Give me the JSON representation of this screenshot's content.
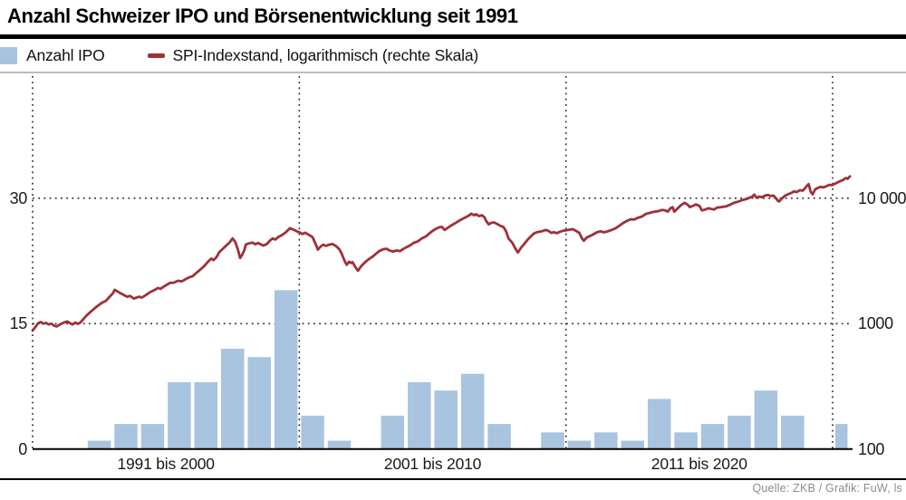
{
  "title": "Anzahl Schweizer IPO und Börsenentwicklung seit 1991",
  "legend": {
    "ipo_label": "Anzahl IPO",
    "spi_label": "SPI-Indexstand, logarithmisch (rechte Skala)"
  },
  "source": "Quelle: ZKB / Grafik: FuW, ls",
  "colors": {
    "bar": "#a9c4de",
    "line": "#9e3138",
    "grid_dots": "#2a2a2a",
    "axis": "#000000",
    "gray_rule": "#bcbcbc",
    "source_text": "#8c8c8c"
  },
  "chart_data": {
    "type": "combo",
    "title": "Anzahl Schweizer IPO und Börsenentwicklung seit 1991",
    "x_axis": {
      "range_years": [
        1991,
        2021.8
      ],
      "decade_separators": [
        1991,
        2001,
        2011,
        2021
      ],
      "group_labels": [
        {
          "label": "1991 bis 2000",
          "center_year": 1996
        },
        {
          "label": "2001 bis 2010",
          "center_year": 2006
        },
        {
          "label": "2011 bis 2020",
          "center_year": 2016
        }
      ]
    },
    "y_left": {
      "label": "Anzahl IPO",
      "ticks": [
        0,
        15,
        30
      ],
      "range": [
        0,
        45
      ],
      "grid_ticks": [
        15,
        30
      ]
    },
    "y_right": {
      "label": "SPI-Indexstand",
      "scale": "logarithmic",
      "ticks": [
        100,
        1000,
        10000
      ],
      "tick_labels": [
        "100",
        "1000",
        "10 000"
      ]
    },
    "series": [
      {
        "name": "Anzahl IPO",
        "type": "bar",
        "axis": "left",
        "start_year": 1991,
        "values": [
          0,
          0,
          1,
          3,
          3,
          8,
          8,
          12,
          11,
          19,
          4,
          1,
          0,
          4,
          8,
          7,
          9,
          3,
          0,
          2,
          1,
          2,
          1,
          6,
          2,
          3,
          4,
          7,
          4,
          0,
          3
        ],
        "partial_last_year": 2021
      },
      {
        "name": "SPI-Indexstand, logarithmisch (rechte Skala)",
        "type": "line",
        "axis": "right",
        "points": [
          [
            1991.0,
            880
          ],
          [
            1991.1,
            935
          ],
          [
            1991.2,
            1005
          ],
          [
            1991.3,
            1030
          ],
          [
            1991.4,
            1000
          ],
          [
            1991.5,
            1015
          ],
          [
            1991.6,
            985
          ],
          [
            1991.7,
            1000
          ],
          [
            1991.8,
            965
          ],
          [
            1991.9,
            950
          ],
          [
            1992.0,
            977
          ],
          [
            1992.1,
            1005
          ],
          [
            1992.2,
            1025
          ],
          [
            1992.3,
            1040
          ],
          [
            1992.4,
            1010
          ],
          [
            1992.5,
            985
          ],
          [
            1992.6,
            1020
          ],
          [
            1992.7,
            995
          ],
          [
            1992.8,
            1025
          ],
          [
            1992.9,
            1085
          ],
          [
            1993.0,
            1148
          ],
          [
            1993.15,
            1230
          ],
          [
            1993.3,
            1310
          ],
          [
            1993.45,
            1390
          ],
          [
            1993.6,
            1465
          ],
          [
            1993.75,
            1520
          ],
          [
            1993.9,
            1650
          ],
          [
            1994.0,
            1735
          ],
          [
            1994.08,
            1860
          ],
          [
            1994.2,
            1795
          ],
          [
            1994.3,
            1745
          ],
          [
            1994.45,
            1680
          ],
          [
            1994.55,
            1635
          ],
          [
            1994.65,
            1665
          ],
          [
            1994.8,
            1585
          ],
          [
            1994.9,
            1615
          ],
          [
            1995.0,
            1639
          ],
          [
            1995.1,
            1615
          ],
          [
            1995.25,
            1690
          ],
          [
            1995.4,
            1780
          ],
          [
            1995.55,
            1845
          ],
          [
            1995.7,
            1925
          ],
          [
            1995.8,
            1895
          ],
          [
            1995.9,
            1965
          ],
          [
            1996.0,
            2023
          ],
          [
            1996.15,
            2110
          ],
          [
            1996.3,
            2125
          ],
          [
            1996.45,
            2195
          ],
          [
            1996.6,
            2175
          ],
          [
            1996.75,
            2270
          ],
          [
            1996.9,
            2355
          ],
          [
            1997.0,
            2390
          ],
          [
            1997.15,
            2550
          ],
          [
            1997.3,
            2705
          ],
          [
            1997.45,
            2900
          ],
          [
            1997.6,
            3155
          ],
          [
            1997.7,
            3305
          ],
          [
            1997.78,
            3205
          ],
          [
            1997.88,
            3360
          ],
          [
            1997.95,
            3550
          ],
          [
            1998.0,
            3711
          ],
          [
            1998.12,
            3930
          ],
          [
            1998.25,
            4170
          ],
          [
            1998.38,
            4420
          ],
          [
            1998.5,
            4780
          ],
          [
            1998.6,
            4470
          ],
          [
            1998.7,
            3890
          ],
          [
            1998.78,
            3340
          ],
          [
            1998.86,
            3530
          ],
          [
            1998.93,
            3810
          ],
          [
            1999.0,
            4280
          ],
          [
            1999.12,
            4360
          ],
          [
            1999.25,
            4430
          ],
          [
            1999.35,
            4290
          ],
          [
            1999.45,
            4390
          ],
          [
            1999.55,
            4290
          ],
          [
            1999.65,
            4190
          ],
          [
            1999.78,
            4300
          ],
          [
            1999.9,
            4590
          ],
          [
            2000.0,
            4780
          ],
          [
            2000.1,
            4680
          ],
          [
            2000.22,
            4920
          ],
          [
            2000.35,
            5080
          ],
          [
            2000.5,
            5350
          ],
          [
            2000.65,
            5770
          ],
          [
            2000.78,
            5620
          ],
          [
            2000.9,
            5450
          ],
          [
            2001.0,
            5350
          ],
          [
            2001.12,
            5180
          ],
          [
            2001.22,
            5310
          ],
          [
            2001.35,
            5120
          ],
          [
            2001.5,
            4890
          ],
          [
            2001.6,
            4380
          ],
          [
            2001.7,
            3890
          ],
          [
            2001.8,
            4120
          ],
          [
            2001.9,
            4260
          ],
          [
            2002.0,
            4167
          ],
          [
            2002.12,
            4260
          ],
          [
            2002.25,
            4310
          ],
          [
            2002.38,
            4150
          ],
          [
            2002.5,
            3920
          ],
          [
            2002.6,
            3580
          ],
          [
            2002.7,
            3160
          ],
          [
            2002.78,
            2940
          ],
          [
            2002.87,
            3120
          ],
          [
            2002.95,
            3040
          ],
          [
            2003.0,
            3085
          ],
          [
            2003.1,
            2830
          ],
          [
            2003.2,
            2640
          ],
          [
            2003.32,
            2870
          ],
          [
            2003.45,
            3060
          ],
          [
            2003.6,
            3260
          ],
          [
            2003.75,
            3420
          ],
          [
            2003.9,
            3640
          ],
          [
            2004.0,
            3788
          ],
          [
            2004.15,
            3920
          ],
          [
            2004.28,
            3950
          ],
          [
            2004.4,
            3810
          ],
          [
            2004.52,
            3760
          ],
          [
            2004.65,
            3830
          ],
          [
            2004.78,
            3790
          ],
          [
            2004.9,
            3940
          ],
          [
            2005.0,
            4048
          ],
          [
            2005.15,
            4200
          ],
          [
            2005.3,
            4410
          ],
          [
            2005.45,
            4530
          ],
          [
            2005.6,
            4790
          ],
          [
            2005.75,
            4960
          ],
          [
            2005.9,
            5290
          ],
          [
            2006.0,
            5489
          ],
          [
            2006.12,
            5690
          ],
          [
            2006.25,
            5860
          ],
          [
            2006.35,
            5905
          ],
          [
            2006.45,
            5590
          ],
          [
            2006.55,
            5770
          ],
          [
            2006.7,
            6060
          ],
          [
            2006.85,
            6320
          ],
          [
            2007.0,
            6626
          ],
          [
            2007.12,
            6840
          ],
          [
            2007.25,
            7070
          ],
          [
            2007.38,
            7320
          ],
          [
            2007.45,
            7530
          ],
          [
            2007.55,
            7310
          ],
          [
            2007.62,
            7450
          ],
          [
            2007.75,
            7190
          ],
          [
            2007.85,
            7310
          ],
          [
            2007.95,
            7020
          ],
          [
            2008.0,
            6626
          ],
          [
            2008.1,
            6180
          ],
          [
            2008.2,
            6360
          ],
          [
            2008.3,
            6420
          ],
          [
            2008.45,
            6190
          ],
          [
            2008.55,
            6010
          ],
          [
            2008.65,
            5910
          ],
          [
            2008.75,
            5480
          ],
          [
            2008.85,
            4760
          ],
          [
            2008.95,
            4520
          ],
          [
            2009.0,
            4371
          ],
          [
            2009.1,
            3980
          ],
          [
            2009.2,
            3690
          ],
          [
            2009.32,
            4040
          ],
          [
            2009.45,
            4350
          ],
          [
            2009.55,
            4640
          ],
          [
            2009.68,
            4950
          ],
          [
            2009.8,
            5230
          ],
          [
            2009.9,
            5340
          ],
          [
            2010.0,
            5393
          ],
          [
            2010.12,
            5470
          ],
          [
            2010.25,
            5590
          ],
          [
            2010.35,
            5480
          ],
          [
            2010.45,
            5290
          ],
          [
            2010.55,
            5360
          ],
          [
            2010.65,
            5260
          ],
          [
            2010.78,
            5410
          ],
          [
            2010.9,
            5510
          ],
          [
            2011.0,
            5550
          ],
          [
            2011.12,
            5610
          ],
          [
            2011.25,
            5660
          ],
          [
            2011.38,
            5490
          ],
          [
            2011.5,
            5290
          ],
          [
            2011.6,
            4790
          ],
          [
            2011.67,
            4580
          ],
          [
            2011.78,
            4860
          ],
          [
            2011.9,
            4990
          ],
          [
            2012.0,
            5120
          ],
          [
            2012.15,
            5330
          ],
          [
            2012.3,
            5450
          ],
          [
            2012.42,
            5340
          ],
          [
            2012.55,
            5420
          ],
          [
            2012.7,
            5570
          ],
          [
            2012.85,
            5740
          ],
          [
            2013.0,
            6021
          ],
          [
            2013.15,
            6350
          ],
          [
            2013.3,
            6620
          ],
          [
            2013.45,
            6800
          ],
          [
            2013.55,
            6740
          ],
          [
            2013.7,
            6980
          ],
          [
            2013.85,
            7140
          ],
          [
            2014.0,
            7506
          ],
          [
            2014.15,
            7640
          ],
          [
            2014.3,
            7790
          ],
          [
            2014.45,
            7870
          ],
          [
            2014.6,
            8060
          ],
          [
            2014.72,
            7990
          ],
          [
            2014.82,
            7820
          ],
          [
            2014.92,
            8320
          ],
          [
            2015.0,
            8489
          ],
          [
            2015.06,
            7810
          ],
          [
            2015.18,
            8240
          ],
          [
            2015.3,
            8760
          ],
          [
            2015.45,
            9190
          ],
          [
            2015.56,
            8880
          ],
          [
            2015.65,
            8490
          ],
          [
            2015.78,
            8720
          ],
          [
            2015.88,
            8930
          ],
          [
            2015.95,
            8760
          ],
          [
            2016.0,
            8715
          ],
          [
            2016.1,
            7990
          ],
          [
            2016.22,
            8120
          ],
          [
            2016.35,
            8310
          ],
          [
            2016.45,
            8210
          ],
          [
            2016.55,
            8130
          ],
          [
            2016.68,
            8420
          ],
          [
            2016.8,
            8470
          ],
          [
            2016.9,
            8560
          ],
          [
            2017.0,
            8593
          ],
          [
            2017.15,
            8860
          ],
          [
            2017.3,
            9190
          ],
          [
            2017.45,
            9370
          ],
          [
            2017.6,
            9640
          ],
          [
            2017.75,
            9820
          ],
          [
            2017.9,
            10110
          ],
          [
            2018.0,
            10310
          ],
          [
            2018.06,
            10690
          ],
          [
            2018.15,
            10090
          ],
          [
            2018.25,
            10310
          ],
          [
            2018.35,
            10190
          ],
          [
            2018.48,
            10520
          ],
          [
            2018.58,
            10610
          ],
          [
            2018.68,
            10390
          ],
          [
            2018.78,
            10490
          ],
          [
            2018.88,
            9960
          ],
          [
            2018.96,
            9480
          ],
          [
            2019.0,
            9420
          ],
          [
            2019.1,
            9990
          ],
          [
            2019.22,
            10480
          ],
          [
            2019.35,
            10790
          ],
          [
            2019.45,
            11020
          ],
          [
            2019.55,
            11310
          ],
          [
            2019.65,
            11190
          ],
          [
            2019.78,
            11580
          ],
          [
            2019.88,
            11480
          ],
          [
            2019.96,
            11960
          ],
          [
            2020.0,
            12308
          ],
          [
            2020.1,
            12960
          ],
          [
            2020.18,
            11210
          ],
          [
            2020.25,
            10740
          ],
          [
            2020.35,
            11790
          ],
          [
            2020.45,
            12080
          ],
          [
            2020.55,
            12310
          ],
          [
            2020.65,
            12190
          ],
          [
            2020.78,
            12490
          ],
          [
            2020.88,
            12790
          ],
          [
            2020.96,
            12690
          ],
          [
            2021.0,
            12770
          ],
          [
            2021.12,
            13140
          ],
          [
            2021.25,
            13560
          ],
          [
            2021.38,
            13950
          ],
          [
            2021.5,
            14480
          ],
          [
            2021.56,
            14280
          ],
          [
            2021.65,
            14920
          ]
        ]
      }
    ]
  }
}
